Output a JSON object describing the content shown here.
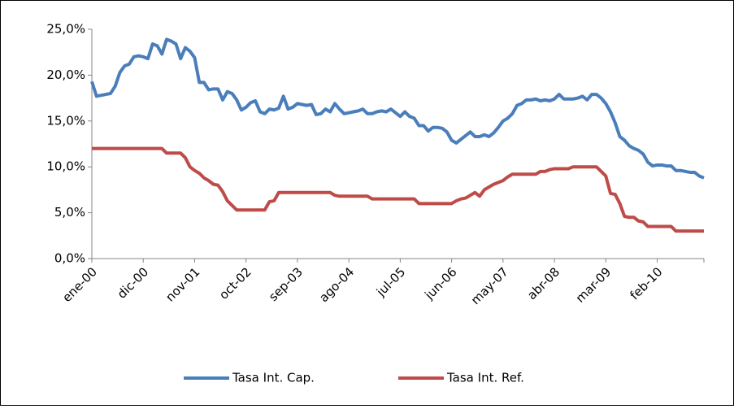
{
  "chart_data": {
    "type": "line",
    "categories": [
      "ene-00",
      null,
      null,
      null,
      null,
      null,
      null,
      null,
      null,
      null,
      null,
      "dic-00",
      null,
      null,
      null,
      null,
      null,
      null,
      null,
      null,
      null,
      null,
      "nov-01",
      null,
      null,
      null,
      null,
      null,
      null,
      null,
      null,
      null,
      null,
      "oct-02",
      null,
      null,
      null,
      null,
      null,
      null,
      null,
      null,
      null,
      null,
      "sep-03",
      null,
      null,
      null,
      null,
      null,
      null,
      null,
      null,
      null,
      null,
      "ago-04",
      null,
      null,
      null,
      null,
      null,
      null,
      null,
      null,
      null,
      null,
      "jul-05",
      null,
      null,
      null,
      null,
      null,
      null,
      null,
      null,
      null,
      null,
      "jun-06",
      null,
      null,
      null,
      null,
      null,
      null,
      null,
      null,
      null,
      null,
      "may-07",
      null,
      null,
      null,
      null,
      null,
      null,
      null,
      null,
      null,
      null,
      "abr-08",
      null,
      null,
      null,
      null,
      null,
      null,
      null,
      null,
      null,
      null,
      "mar-09",
      null,
      null,
      null,
      null,
      null,
      null,
      null,
      null,
      null,
      null,
      "feb-10",
      null,
      null,
      null,
      null,
      null,
      null,
      null,
      null,
      null,
      null
    ],
    "series": [
      {
        "name": "Tasa Int. Cap.",
        "color": "#4a7ebb",
        "values": [
          19.3,
          17.7,
          17.8,
          17.9,
          18.0,
          18.8,
          20.3,
          21.0,
          21.2,
          22.0,
          22.1,
          22.0,
          21.8,
          23.4,
          23.2,
          22.3,
          23.9,
          23.7,
          23.4,
          21.8,
          23.0,
          22.6,
          21.9,
          19.2,
          19.2,
          18.4,
          18.5,
          18.5,
          17.3,
          18.2,
          18.0,
          17.3,
          16.2,
          16.5,
          17.0,
          17.2,
          16.0,
          15.8,
          16.3,
          16.2,
          16.4,
          17.7,
          16.3,
          16.5,
          16.9,
          16.8,
          16.7,
          16.8,
          15.7,
          15.8,
          16.3,
          16.0,
          16.9,
          16.3,
          15.8,
          15.9,
          16.0,
          16.1,
          16.3,
          15.8,
          15.8,
          16.0,
          16.1,
          16.0,
          16.3,
          15.9,
          15.5,
          16.0,
          15.5,
          15.3,
          14.5,
          14.5,
          13.9,
          14.3,
          14.3,
          14.2,
          13.8,
          12.9,
          12.6,
          13.0,
          13.4,
          13.8,
          13.3,
          13.3,
          13.5,
          13.3,
          13.7,
          14.3,
          15.0,
          15.3,
          15.8,
          16.7,
          16.9,
          17.3,
          17.3,
          17.4,
          17.2,
          17.3,
          17.2,
          17.4,
          17.9,
          17.4,
          17.4,
          17.4,
          17.5,
          17.7,
          17.3,
          17.9,
          17.9,
          17.5,
          16.9,
          16.0,
          14.8,
          13.3,
          12.9,
          12.3,
          12.0,
          11.8,
          11.4,
          10.5,
          10.1,
          10.2,
          10.2,
          10.1,
          10.1,
          9.6,
          9.6,
          9.5,
          9.4,
          9.4,
          9.0,
          8.8
        ]
      },
      {
        "name": "Tasa Int. Ref.",
        "color": "#be4b48",
        "values": [
          12.0,
          12.0,
          12.0,
          12.0,
          12.0,
          12.0,
          12.0,
          12.0,
          12.0,
          12.0,
          12.0,
          12.0,
          12.0,
          12.0,
          12.0,
          12.0,
          11.5,
          11.5,
          11.5,
          11.5,
          11.0,
          10.0,
          9.6,
          9.3,
          8.8,
          8.5,
          8.1,
          8.0,
          7.3,
          6.3,
          5.8,
          5.3,
          5.3,
          5.3,
          5.3,
          5.3,
          5.3,
          5.3,
          6.2,
          6.3,
          7.2,
          7.2,
          7.2,
          7.2,
          7.2,
          7.2,
          7.2,
          7.2,
          7.2,
          7.2,
          7.2,
          7.2,
          6.9,
          6.8,
          6.8,
          6.8,
          6.8,
          6.8,
          6.8,
          6.8,
          6.5,
          6.5,
          6.5,
          6.5,
          6.5,
          6.5,
          6.5,
          6.5,
          6.5,
          6.5,
          6.0,
          6.0,
          6.0,
          6.0,
          6.0,
          6.0,
          6.0,
          6.0,
          6.3,
          6.5,
          6.6,
          6.9,
          7.2,
          6.8,
          7.5,
          7.8,
          8.1,
          8.3,
          8.5,
          8.9,
          9.2,
          9.2,
          9.2,
          9.2,
          9.2,
          9.2,
          9.5,
          9.5,
          9.7,
          9.8,
          9.8,
          9.8,
          9.8,
          10.0,
          10.0,
          10.0,
          10.0,
          10.0,
          10.0,
          9.5,
          9.0,
          7.1,
          7.0,
          6.0,
          4.6,
          4.5,
          4.5,
          4.1,
          4.0,
          3.5,
          3.5,
          3.5,
          3.5,
          3.5,
          3.5,
          3.0,
          3.0,
          3.0,
          3.0,
          3.0,
          3.0,
          3.0
        ]
      }
    ],
    "ylim": [
      0,
      25
    ],
    "yticks": [
      {
        "value": 0,
        "label": "0,0%"
      },
      {
        "value": 5,
        "label": "5,0%"
      },
      {
        "value": 10,
        "label": "10,0%"
      },
      {
        "value": 15,
        "label": "15,0%"
      },
      {
        "value": 20,
        "label": "20,0%"
      },
      {
        "value": 25,
        "label": "25,0%"
      }
    ],
    "legend": "bottom"
  }
}
